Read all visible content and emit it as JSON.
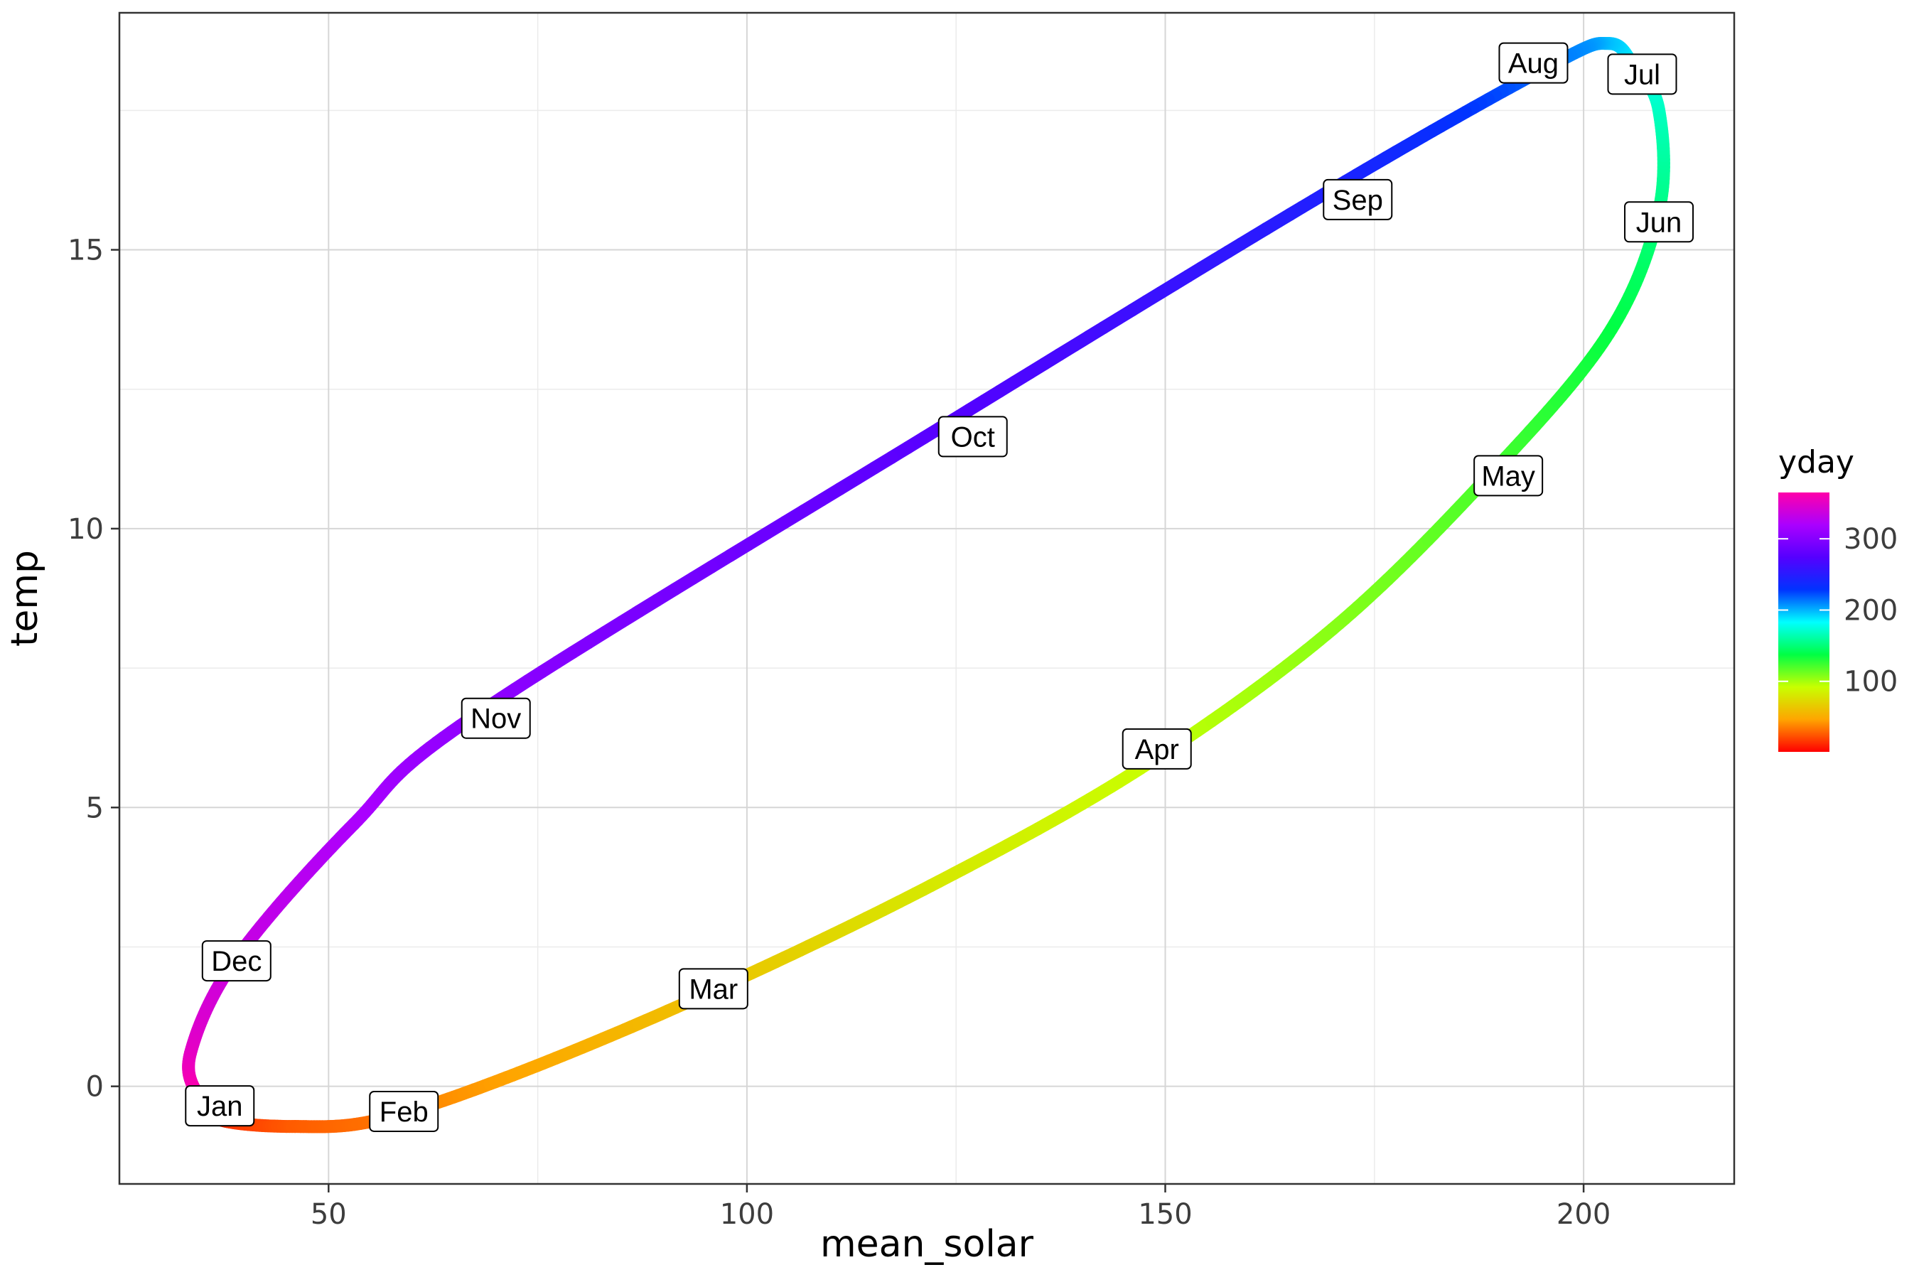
{
  "chart_data": {
    "type": "line",
    "xlabel": "mean_solar",
    "ylabel": "temp",
    "xlim": [
      25,
      218
    ],
    "ylim": [
      -1.75,
      19.25
    ],
    "x_ticks": [
      50,
      100,
      150,
      200
    ],
    "y_ticks": [
      0,
      5,
      10,
      15
    ],
    "x_tick_labels": [
      "50",
      "100",
      "150",
      "200"
    ],
    "y_tick_labels": [
      "0",
      "5",
      "10",
      "15"
    ],
    "grid": true,
    "legend": {
      "title": "yday",
      "position": "right",
      "range": [
        1,
        365
      ],
      "ticks": [
        100,
        200,
        300
      ],
      "tick_labels": [
        "100",
        "200",
        "300"
      ],
      "colorscale": [
        "#ff0000",
        "#ffa500",
        "#c8ff00",
        "#00ff44",
        "#00ffff",
        "#0033ff",
        "#5500ff",
        "#aa00ff",
        "#ff00aa"
      ]
    },
    "path": [
      {
        "yday": 1,
        "x": 34.5,
        "y": -0.2
      },
      {
        "yday": 12,
        "x": 37,
        "y": -0.6
      },
      {
        "yday": 26,
        "x": 46,
        "y": -0.72
      },
      {
        "yday": 32,
        "x": 56,
        "y": -0.6
      },
      {
        "yday": 46,
        "x": 72,
        "y": 0.2
      },
      {
        "yday": 60,
        "x": 95,
        "y": 1.65
      },
      {
        "yday": 80,
        "x": 122,
        "y": 3.6
      },
      {
        "yday": 91,
        "x": 147,
        "y": 5.7
      },
      {
        "yday": 106,
        "x": 170,
        "y": 8.2
      },
      {
        "yday": 121,
        "x": 189,
        "y": 11.0
      },
      {
        "yday": 136,
        "x": 203,
        "y": 13.5
      },
      {
        "yday": 152,
        "x": 209,
        "y": 15.7
      },
      {
        "yday": 167,
        "x": 209,
        "y": 17.5
      },
      {
        "yday": 182,
        "x": 206,
        "y": 18.3
      },
      {
        "yday": 196,
        "x": 203,
        "y": 18.7
      },
      {
        "yday": 213,
        "x": 196,
        "y": 18.3
      },
      {
        "yday": 244,
        "x": 169,
        "y": 16.0
      },
      {
        "yday": 274,
        "x": 123,
        "y": 11.8
      },
      {
        "yday": 305,
        "x": 68,
        "y": 6.7
      },
      {
        "yday": 320,
        "x": 53,
        "y": 4.7
      },
      {
        "yday": 335,
        "x": 39,
        "y": 2.3
      },
      {
        "yday": 350,
        "x": 33.5,
        "y": 0.6
      },
      {
        "yday": 365,
        "x": 34.5,
        "y": -0.2
      }
    ],
    "month_labels": [
      {
        "label": "Jan",
        "x": 37,
        "y": -0.35
      },
      {
        "label": "Feb",
        "x": 59,
        "y": -0.45
      },
      {
        "label": "Mar",
        "x": 96,
        "y": 1.75
      },
      {
        "label": "Apr",
        "x": 149,
        "y": 6.05
      },
      {
        "label": "May",
        "x": 191,
        "y": 10.95
      },
      {
        "label": "Jun",
        "x": 209,
        "y": 15.5
      },
      {
        "label": "Jul",
        "x": 207,
        "y": 18.15
      },
      {
        "label": "Aug",
        "x": 194,
        "y": 18.35
      },
      {
        "label": "Sep",
        "x": 173,
        "y": 15.9
      },
      {
        "label": "Oct",
        "x": 127,
        "y": 11.65
      },
      {
        "label": "Nov",
        "x": 70,
        "y": 6.6
      },
      {
        "label": "Dec",
        "x": 39,
        "y": 2.25
      }
    ]
  }
}
